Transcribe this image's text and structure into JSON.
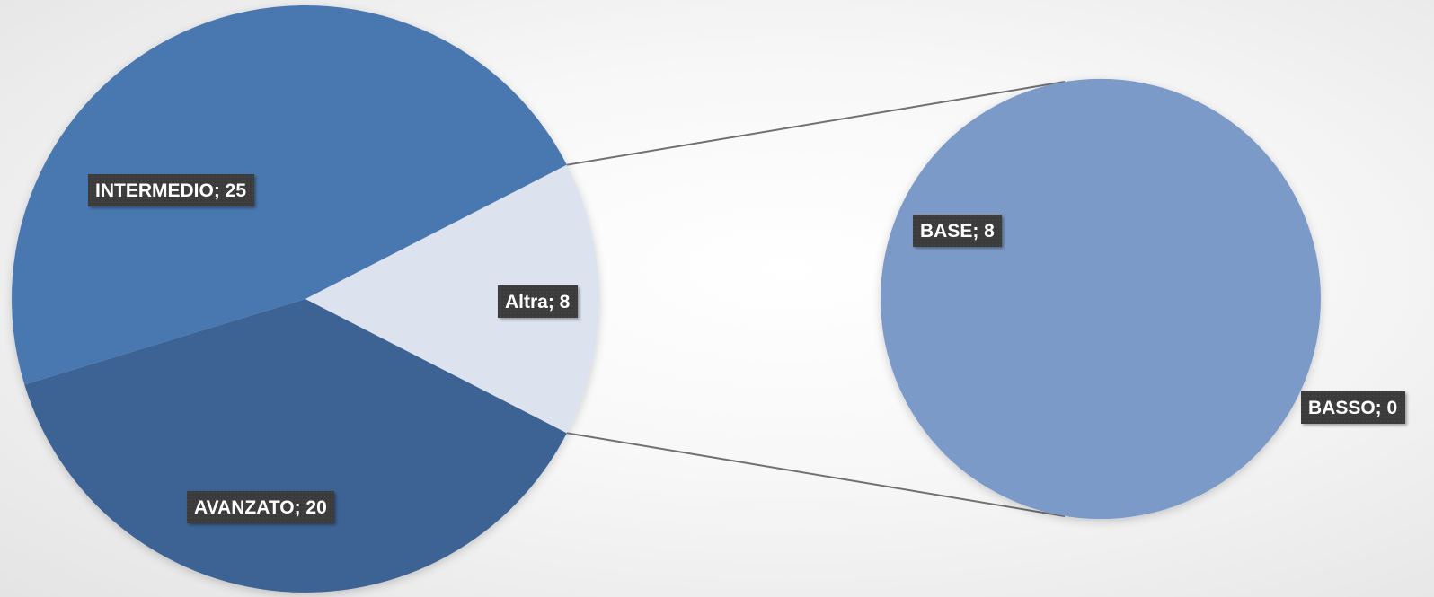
{
  "chart_data": {
    "type": "pie",
    "variant": "pie-of-pie",
    "primary": {
      "slices": [
        {
          "label": "INTERMEDIO",
          "value": 25,
          "color": "#4a78b0"
        },
        {
          "label": "AVANZATO",
          "value": 20,
          "color": "#3c6394"
        },
        {
          "label": "Altra",
          "value": 8,
          "color": "#dce2ee"
        }
      ]
    },
    "secondary": {
      "slices": [
        {
          "label": "BASE",
          "value": 8,
          "color": "#7b9ac7"
        },
        {
          "label": "BASSO",
          "value": 0,
          "color": "#7b9ac7"
        }
      ]
    },
    "data_labels": {
      "intermedio": "INTERMEDIO; 25",
      "avanzato": "AVANZATO; 20",
      "altra": "Altra; 8",
      "base": "BASE; 8",
      "basso": "BASSO; 0"
    },
    "legend": "none",
    "grid": false
  }
}
